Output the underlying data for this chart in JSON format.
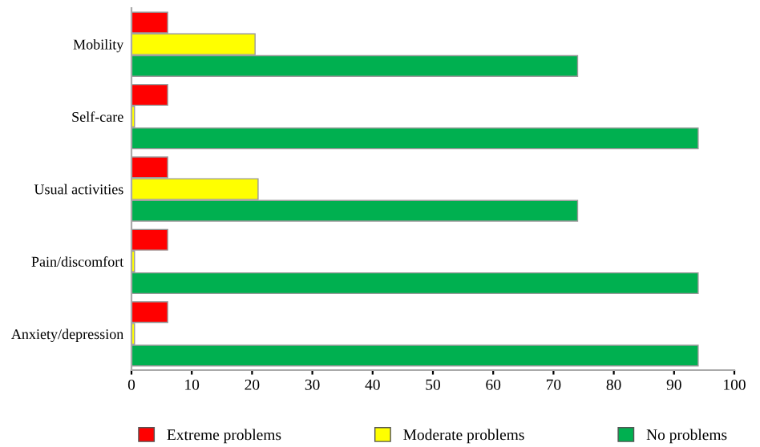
{
  "chart_data": {
    "type": "bar",
    "orientation": "horizontal",
    "categories": [
      "Mobility",
      "Self-care",
      "Usual activities",
      "Pain/discomfort",
      "Anxiety/depression"
    ],
    "series": [
      {
        "name": "Extreme problems",
        "color": "#ff0000",
        "values": [
          6,
          6,
          6,
          6,
          6
        ]
      },
      {
        "name": "Moderate problems",
        "color": "#ffff00",
        "values": [
          20.5,
          0.5,
          21,
          0.5,
          0.5
        ]
      },
      {
        "name": "No problems",
        "color": "#00b050",
        "values": [
          74,
          94,
          74,
          94,
          94
        ]
      }
    ],
    "xlim": [
      0,
      100
    ],
    "xticks": [
      0,
      10,
      20,
      30,
      40,
      50,
      60,
      70,
      80,
      90,
      100
    ],
    "grid": false,
    "legend": "bottom"
  }
}
